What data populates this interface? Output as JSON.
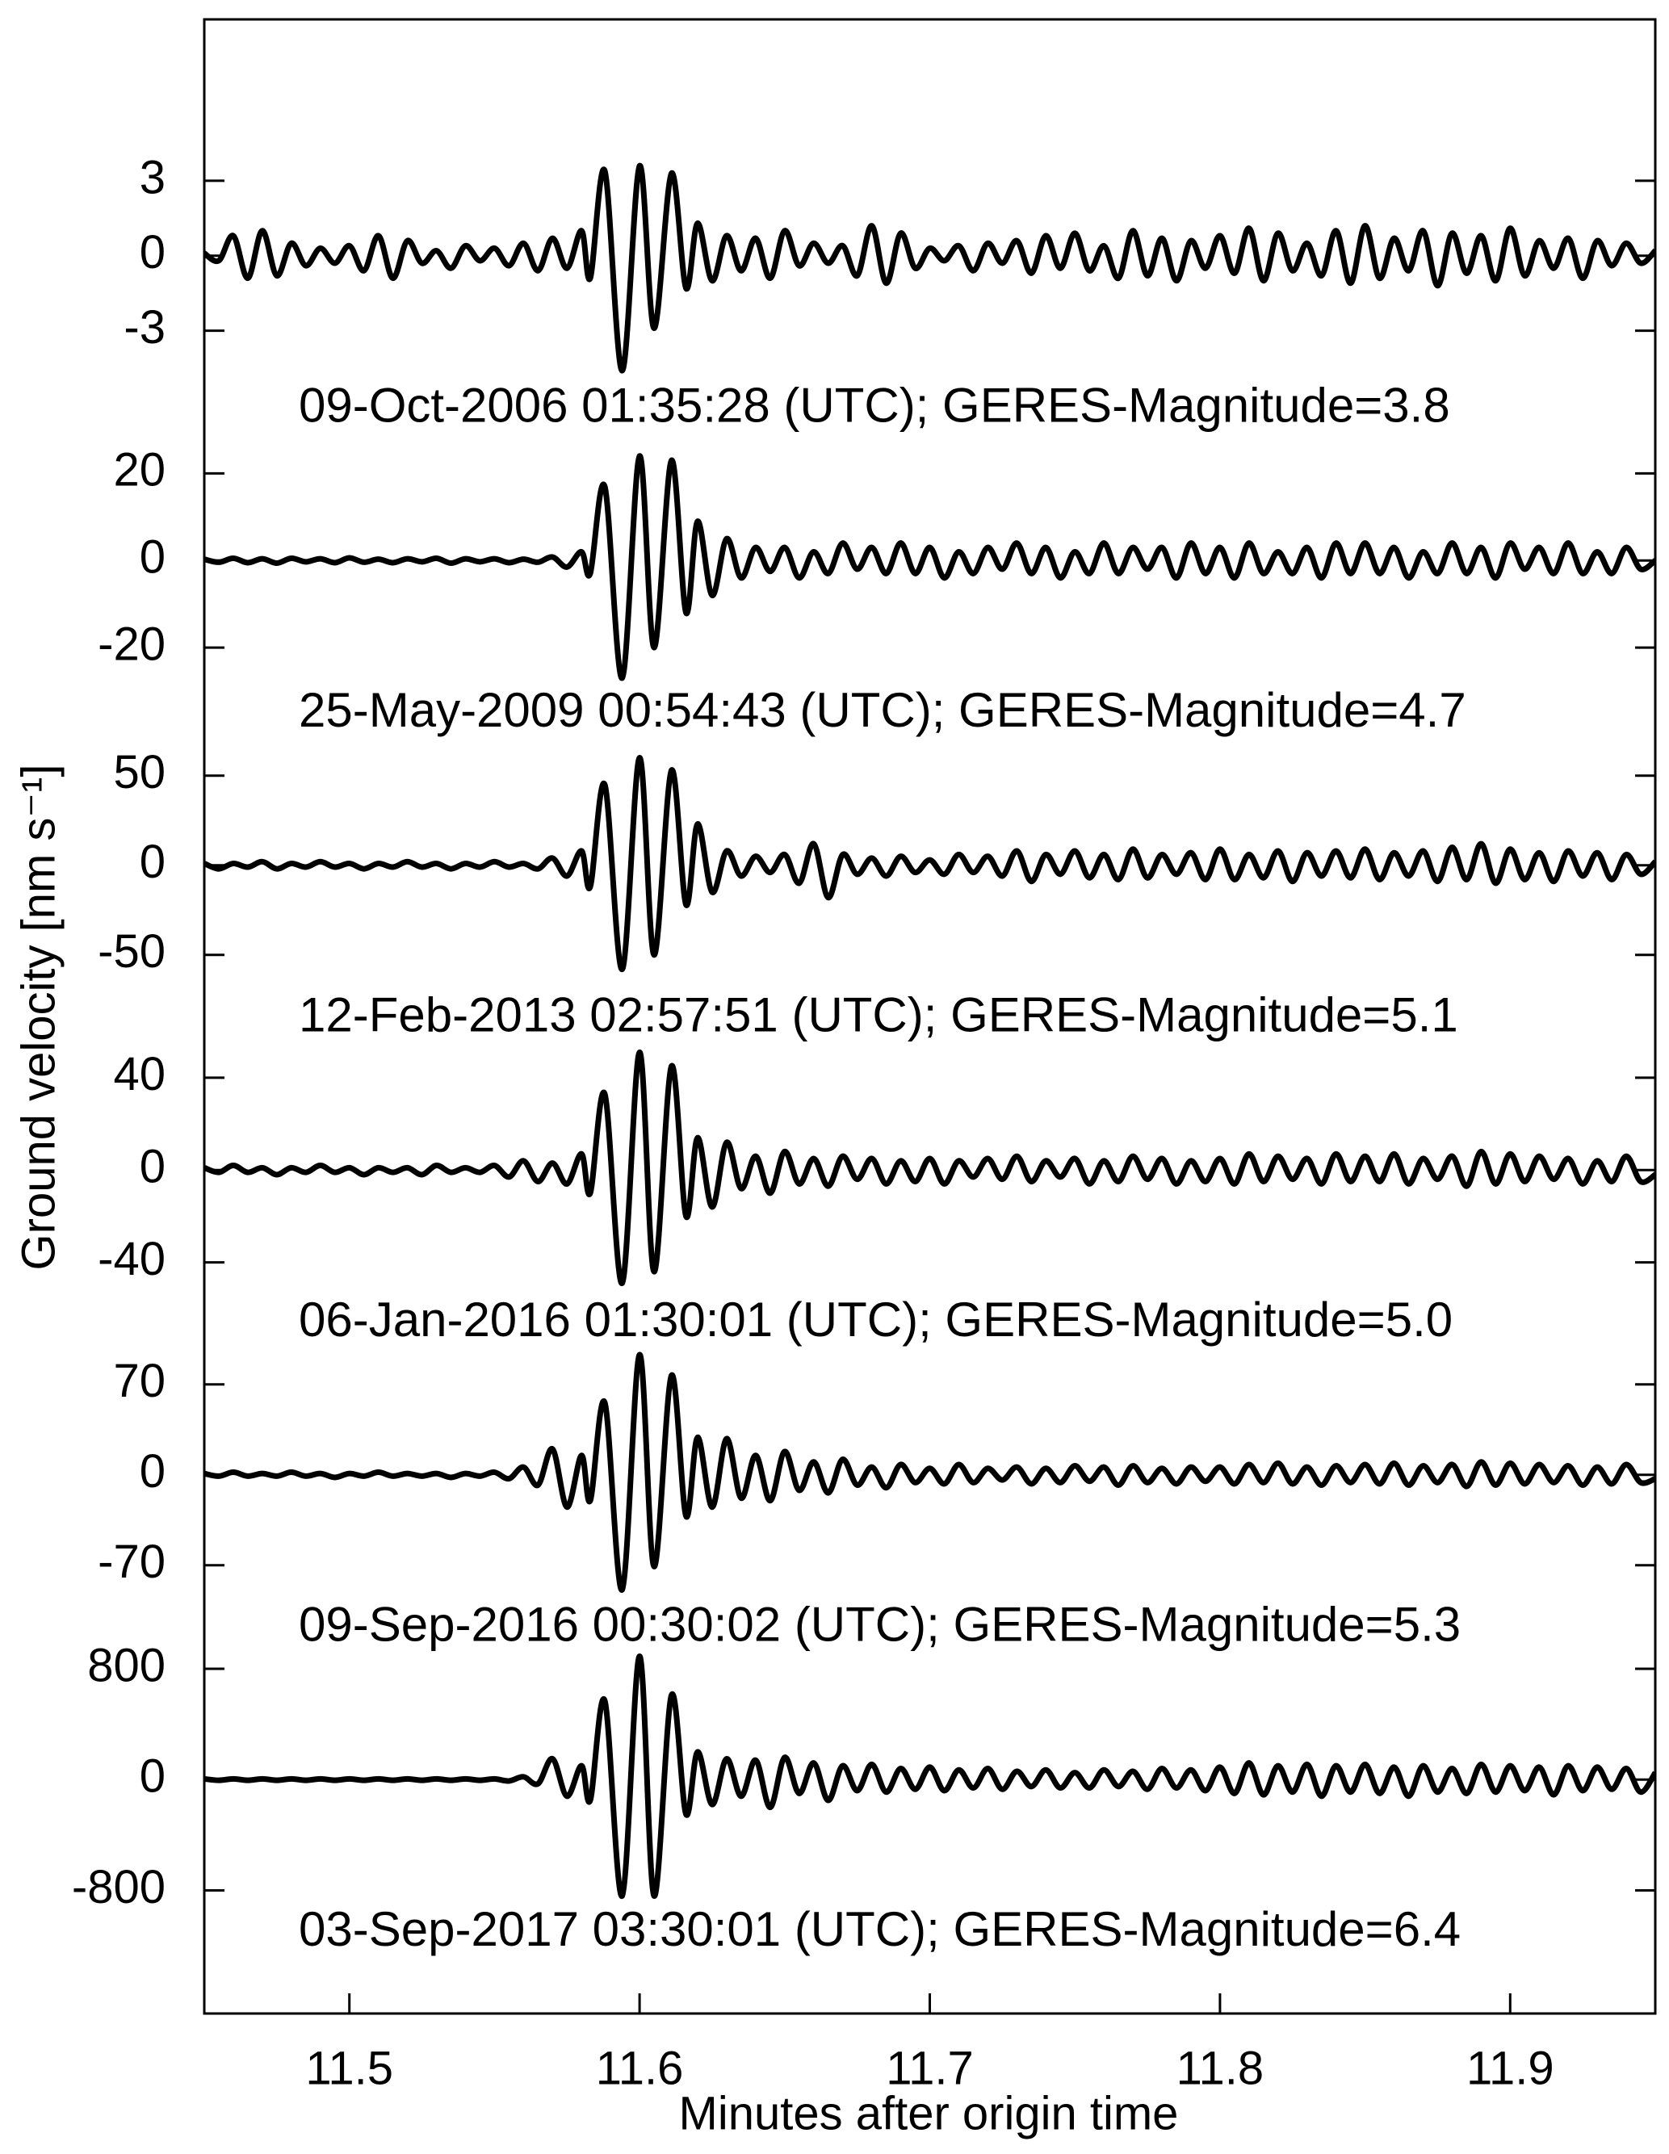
{
  "chart_data": {
    "type": "line",
    "layout": "stacked",
    "xlabel": "Minutes after origin time",
    "ylabel": "Ground velocity [nm s⁻¹]",
    "xlim": [
      11.45,
      11.95
    ],
    "xticks": [
      11.5,
      11.6,
      11.7,
      11.8,
      11.9
    ],
    "x": [
      11.45,
      11.455,
      11.46,
      11.465,
      11.47,
      11.475,
      11.48,
      11.485,
      11.49,
      11.495,
      11.5,
      11.505,
      11.51,
      11.515,
      11.52,
      11.525,
      11.53,
      11.535,
      11.54,
      11.545,
      11.55,
      11.555,
      11.56,
      11.565,
      11.57,
      11.575,
      11.58,
      11.583,
      11.588,
      11.594,
      11.6,
      11.605,
      11.611,
      11.616,
      11.62,
      11.625,
      11.63,
      11.635,
      11.64,
      11.645,
      11.65,
      11.655,
      11.66,
      11.665,
      11.67,
      11.675,
      11.68,
      11.685,
      11.69,
      11.695,
      11.7,
      11.705,
      11.71,
      11.715,
      11.72,
      11.725,
      11.73,
      11.735,
      11.74,
      11.745,
      11.75,
      11.755,
      11.76,
      11.765,
      11.77,
      11.775,
      11.78,
      11.785,
      11.79,
      11.795,
      11.8,
      11.805,
      11.81,
      11.815,
      11.82,
      11.825,
      11.83,
      11.835,
      11.84,
      11.845,
      11.85,
      11.855,
      11.86,
      11.865,
      11.87,
      11.875,
      11.88,
      11.885,
      11.89,
      11.895,
      11.9,
      11.905,
      11.91,
      11.915,
      11.92,
      11.925,
      11.93,
      11.935,
      11.94,
      11.945,
      11.95
    ],
    "series": [
      {
        "name": "09-Oct-2006 01:35:28  (UTC); GERES-Magnitude=3.8",
        "color": "#000000",
        "ylim": [
          -6.1,
          6.1
        ],
        "yticks": [
          -3,
          0,
          3
        ],
        "values": [
          0.1,
          -0.2,
          0.8,
          -0.9,
          1.0,
          -0.8,
          0.5,
          -0.4,
          0.3,
          -0.3,
          0.4,
          -0.6,
          0.8,
          -0.9,
          0.6,
          -0.3,
          0.2,
          -0.5,
          0.4,
          -0.2,
          0.3,
          -0.4,
          0.5,
          -0.6,
          0.7,
          -0.5,
          1.0,
          -0.9,
          3.4,
          -4.6,
          3.6,
          -2.9,
          3.3,
          -1.3,
          1.3,
          -1.0,
          0.8,
          -0.6,
          0.7,
          -0.9,
          1.0,
          -0.4,
          0.5,
          -0.3,
          0.4,
          -0.8,
          1.2,
          -1.1,
          0.9,
          -0.5,
          0.3,
          -0.2,
          0.4,
          -0.6,
          0.5,
          -0.3,
          0.6,
          -0.7,
          0.8,
          -0.5,
          0.9,
          -0.6,
          0.4,
          -0.9,
          1.0,
          -0.8,
          0.7,
          -1.0,
          0.6,
          -0.5,
          0.8,
          -0.7,
          1.1,
          -1.0,
          0.9,
          -0.6,
          0.5,
          -0.8,
          1.0,
          -1.1,
          1.2,
          -0.9,
          0.7,
          -0.6,
          1.0,
          -1.2,
          0.9,
          -0.7,
          0.8,
          -1.0,
          1.1,
          -0.8,
          0.6,
          -0.5,
          0.7,
          -0.9,
          0.6,
          -0.4,
          0.5,
          -0.3,
          0.2
        ]
      },
      {
        "name": "25-May-2009 00:54:43  (UTC); GERES-Magnitude=4.7",
        "color": "#000000",
        "ylim": [
          -35,
          35
        ],
        "yticks": [
          -20,
          0,
          20
        ],
        "values": [
          0.3,
          -0.4,
          0.5,
          -0.5,
          0.4,
          -0.6,
          0.5,
          -0.3,
          0.4,
          -0.5,
          0.6,
          -0.4,
          0.3,
          -0.5,
          0.4,
          -0.3,
          0.5,
          -0.6,
          0.4,
          -0.3,
          0.4,
          -0.5,
          0.3,
          -0.4,
          0.8,
          -1.5,
          2.0,
          -3.0,
          17,
          -27,
          24,
          -20,
          23,
          -12,
          9,
          -8,
          5,
          -4,
          3,
          -2.5,
          3,
          -4,
          2,
          -3,
          4,
          -2,
          3,
          -3,
          4,
          -3,
          3,
          -4,
          2,
          -3,
          3,
          -2,
          4,
          -3,
          3,
          -4,
          2,
          -3,
          4,
          -3,
          3,
          -2,
          3,
          -4,
          4,
          -3,
          3,
          -4,
          4,
          -3,
          2,
          -3,
          3,
          -4,
          4,
          -3,
          4,
          -3,
          3,
          -4,
          2,
          -3,
          4,
          -3,
          3,
          -4,
          4,
          -2,
          3,
          -3,
          4,
          -3,
          2,
          -3,
          3,
          -2,
          0
        ]
      },
      {
        "name": "12-Feb-2013 02:57:51  (UTC); GERES-Magnitude=5.1",
        "color": "#000000",
        "ylim": [
          -85,
          85
        ],
        "yticks": [
          -50,
          0,
          50
        ],
        "values": [
          1,
          -2,
          1,
          -1,
          2,
          -2,
          1,
          -1,
          2,
          -1,
          1,
          -2,
          1,
          -1,
          2,
          -1,
          1,
          -2,
          1,
          -1,
          2,
          -1,
          1,
          -2,
          4,
          -6,
          8,
          -12,
          45,
          -58,
          60,
          -50,
          53,
          -22,
          23,
          -15,
          8,
          -6,
          5,
          -4,
          6,
          -10,
          12,
          -18,
          6,
          -5,
          4,
          -6,
          5,
          -4,
          3,
          -5,
          6,
          -4,
          5,
          -6,
          8,
          -9,
          6,
          -5,
          8,
          -7,
          6,
          -8,
          9,
          -7,
          6,
          -5,
          7,
          -8,
          9,
          -8,
          6,
          -7,
          8,
          -9,
          7,
          -6,
          8,
          -7,
          9,
          -8,
          7,
          -6,
          8,
          -9,
          10,
          -8,
          12,
          -10,
          9,
          -8,
          7,
          -9,
          8,
          -6,
          7,
          -8,
          6,
          -5,
          2
        ]
      },
      {
        "name": "06-Jan-2016 01:30:01  (UTC); GERES-Magnitude=5.0",
        "color": "#000000",
        "ylim": [
          -66,
          66
        ],
        "yticks": [
          -40,
          0,
          40
        ],
        "values": [
          1,
          -1,
          2,
          -1,
          1,
          -2,
          1,
          -1,
          2,
          -1,
          1,
          -2,
          1,
          -1,
          1,
          -2,
          2,
          -1,
          1,
          -1,
          2,
          -3,
          4,
          -5,
          3,
          -6,
          7,
          -10,
          33,
          -49,
          51,
          -44,
          45,
          -20,
          14,
          -16,
          12,
          -8,
          6,
          -10,
          8,
          -6,
          5,
          -7,
          6,
          -4,
          5,
          -6,
          4,
          -5,
          5,
          -6,
          4,
          -3,
          5,
          -4,
          6,
          -5,
          4,
          -3,
          5,
          -6,
          4,
          -5,
          6,
          -4,
          5,
          -6,
          4,
          -5,
          5,
          -6,
          7,
          -5,
          6,
          -4,
          5,
          -6,
          7,
          -5,
          6,
          -5,
          7,
          -6,
          5,
          -4,
          6,
          -7,
          8,
          -6,
          7,
          -5,
          6,
          -4,
          5,
          -6,
          4,
          -5,
          6,
          -5,
          -2
        ]
      },
      {
        "name": "09-Sep-2016 00:30:02  (UTC); GERES-Magnitude=5.3",
        "color": "#000000",
        "ylim": [
          -118,
          118
        ],
        "yticks": [
          -70,
          0,
          70
        ],
        "values": [
          1,
          -1,
          2,
          -1,
          1,
          -1,
          2,
          -1,
          1,
          -2,
          1,
          -1,
          2,
          -1,
          1,
          -1,
          1,
          -2,
          1,
          -1,
          2,
          -3,
          6,
          -8,
          20,
          -25,
          15,
          -20,
          56,
          -89,
          93,
          -71,
          77,
          -32,
          29,
          -25,
          28,
          -18,
          15,
          -20,
          18,
          -12,
          10,
          -14,
          12,
          -8,
          6,
          -10,
          8,
          -6,
          5,
          -7,
          8,
          -6,
          5,
          -4,
          6,
          -7,
          5,
          -6,
          7,
          -5,
          6,
          -8,
          7,
          -6,
          5,
          -7,
          6,
          -5,
          6,
          -7,
          8,
          -6,
          9,
          -7,
          6,
          -8,
          7,
          -6,
          8,
          -7,
          9,
          -8,
          7,
          -6,
          8,
          -9,
          10,
          -8,
          9,
          -7,
          8,
          -6,
          7,
          -8,
          6,
          -7,
          8,
          -6,
          -3
        ]
      },
      {
        "name": "03-Sep-2017 03:30:01  (UTC); GERES-Magnitude=6.4",
        "color": "#000000",
        "ylim": [
          -1100,
          1100
        ],
        "yticks": [
          -800,
          0,
          800
        ],
        "values": [
          5,
          -5,
          5,
          -5,
          5,
          -5,
          5,
          -5,
          5,
          -5,
          5,
          -5,
          5,
          -5,
          5,
          -5,
          5,
          -5,
          5,
          -5,
          5,
          -10,
          20,
          -30,
          150,
          -120,
          100,
          -150,
          570,
          -840,
          890,
          -840,
          610,
          -250,
          200,
          -180,
          150,
          -120,
          140,
          -200,
          160,
          -100,
          120,
          -150,
          100,
          -80,
          110,
          -90,
          80,
          -70,
          90,
          -80,
          70,
          -60,
          80,
          -70,
          60,
          -50,
          70,
          -60,
          50,
          -60,
          70,
          -50,
          60,
          -70,
          80,
          -60,
          70,
          -80,
          90,
          -100,
          120,
          -110,
          100,
          -90,
          110,
          -120,
          100,
          -90,
          110,
          -100,
          90,
          -120,
          100,
          -90,
          80,
          -100,
          110,
          -90,
          100,
          -80,
          90,
          -110,
          100,
          -80,
          90,
          -70,
          80,
          -90,
          50
        ]
      }
    ]
  }
}
